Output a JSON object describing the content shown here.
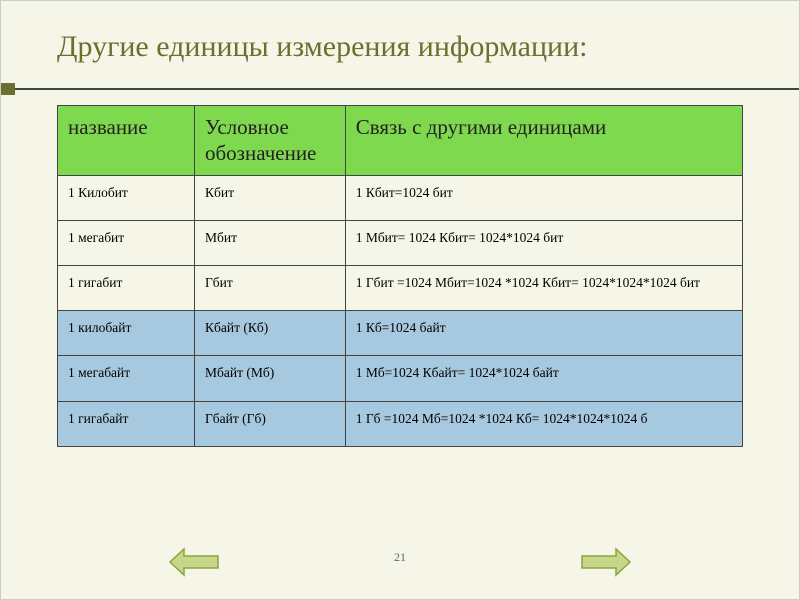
{
  "title": "Другие единицы измерения информации:",
  "header_bg": "#7fd94f",
  "group_a_bg": "#f5f6e8",
  "group_b_bg": "#a7c9df",
  "arrow_fill": "#c6d78a",
  "arrow_stroke": "#8fa33c",
  "page_number": "21",
  "columns": {
    "c1": "название",
    "c2": "Условное обозначение",
    "c3": "Связь с другими единицами"
  },
  "rows": [
    {
      "group": "a",
      "c1": "1 Килобит",
      "c2": "Кбит",
      "c3": "1 Кбит=1024 бит"
    },
    {
      "group": "a",
      "c1": "1 мегабит",
      "c2": "Мбит",
      "c3": "1 Мбит= 1024 Кбит= 1024*1024 бит"
    },
    {
      "group": "a",
      "c1": "1 гигабит",
      "c2": "Гбит",
      "c3": "1 Гбит =1024 Мбит=1024 *1024 Кбит= 1024*1024*1024 бит"
    },
    {
      "group": "b",
      "c1": "1 килобайт",
      "c2": "Кбайт (Кб)",
      "c3": "1 Кб=1024 байт"
    },
    {
      "group": "b",
      "c1": "1 мегабайт",
      "c2": "Мбайт (Мб)",
      "c3": "1 Мб=1024 Кбайт= 1024*1024 байт"
    },
    {
      "group": "b",
      "c1": "1 гигабайт",
      "c2": "Гбайт (Гб)",
      "c3": "1 Гб =1024 Мб=1024 *1024 Кб= 1024*1024*1024 б"
    }
  ]
}
